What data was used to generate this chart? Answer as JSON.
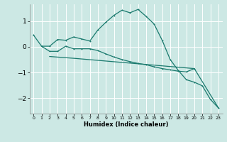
{
  "title": "",
  "xlabel": "Humidex (Indice chaleur)",
  "ylabel": "",
  "bg_color": "#cce8e4",
  "grid_color": "#ffffff",
  "line_color": "#1a7a6e",
  "xlim": [
    -0.5,
    23.5
  ],
  "ylim": [
    -2.6,
    1.65
  ],
  "yticks": [
    -2,
    -1,
    0,
    1
  ],
  "xticks": [
    0,
    1,
    2,
    3,
    4,
    5,
    6,
    7,
    8,
    9,
    10,
    11,
    12,
    13,
    14,
    15,
    16,
    17,
    18,
    19,
    20,
    21,
    22,
    23
  ],
  "curve1_x": [
    0,
    1,
    2,
    3,
    4,
    5,
    6,
    7,
    8,
    9,
    10,
    11,
    12,
    13,
    14,
    15,
    16,
    17,
    18,
    19,
    20,
    21,
    22,
    23
  ],
  "curve1_y": [
    0.45,
    0.02,
    0.02,
    0.28,
    0.25,
    0.38,
    0.3,
    0.22,
    0.65,
    0.95,
    1.22,
    1.42,
    1.32,
    1.45,
    1.18,
    0.88,
    0.25,
    -0.5,
    -0.92,
    -1.28,
    -1.38,
    -1.52,
    -2.05,
    -2.38
  ],
  "curve2_x": [
    1,
    2,
    3,
    4,
    5,
    6,
    7,
    8,
    9,
    10,
    11,
    12,
    13,
    14,
    15,
    16,
    17,
    18,
    19,
    20
  ],
  "curve2_y": [
    0.02,
    -0.18,
    -0.18,
    0.02,
    -0.08,
    -0.08,
    -0.08,
    -0.15,
    -0.28,
    -0.4,
    -0.5,
    -0.58,
    -0.65,
    -0.7,
    -0.78,
    -0.85,
    -0.9,
    -0.95,
    -0.98,
    -0.85
  ],
  "curve3_x": [
    2,
    5,
    20,
    23
  ],
  "curve3_y": [
    -0.38,
    -0.45,
    -0.85,
    -2.38
  ]
}
